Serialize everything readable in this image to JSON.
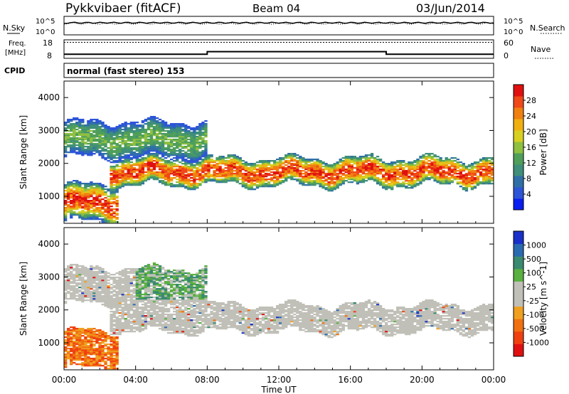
{
  "header": {
    "station": "Pykkvibaer (fitACF)",
    "beam": "Beam 04",
    "date": "03/Jun/2014"
  },
  "sky_panel": {
    "left_label": "N.Sky",
    "right_label": "N.Search",
    "left_ticks": [
      "10^5",
      "10^0"
    ],
    "right_ticks": [
      "10^5",
      "10^0"
    ]
  },
  "freq_panel": {
    "left_label_1": "Freq.",
    "left_label_2": "[MHz]",
    "right_label": "Nave",
    "left_ticks": [
      "18",
      "8"
    ],
    "right_ticks": [
      "60",
      "0"
    ],
    "freq_steps": [
      {
        "from": "00:00",
        "to": "08:00",
        "freq_mhz": 10.2
      },
      {
        "from": "08:00",
        "to": "18:00",
        "freq_mhz": 11.6
      },
      {
        "from": "18:00",
        "to": "24:00",
        "freq_mhz": 10.2
      }
    ],
    "nave_level": 52
  },
  "cpid": {
    "label": "CPID",
    "value": "normal (fast stereo) 153"
  },
  "time_axis": {
    "label": "Time UT",
    "ticks": [
      "00:00",
      "04:00",
      "08:00",
      "12:00",
      "16:00",
      "20:00",
      "00:00"
    ]
  },
  "chart_data": [
    {
      "type": "heatmap",
      "quantity": "Power",
      "ylabel": "Slant Range [km]",
      "ylim": [
        180,
        4500
      ],
      "yticks": [
        "1000",
        "2000",
        "3000",
        "4000"
      ],
      "xlabel": "Time UT",
      "xlim_hours": [
        0,
        24
      ],
      "colorbar": {
        "label": "Power [dB]",
        "ticks": [
          "4",
          "8",
          "12",
          "16",
          "20",
          "24",
          "28"
        ],
        "range": [
          0,
          30
        ],
        "colors": [
          "#0a1ef0",
          "#2d55d8",
          "#2f6fa8",
          "#3f8f7a",
          "#4f9f5a",
          "#8fc040",
          "#d8d020",
          "#f0b010",
          "#f08010",
          "#f04818",
          "#e01010"
        ]
      },
      "features": [
        {
          "name": "main band",
          "from_ut": 2.5,
          "to_ut": 24,
          "range_km": [
            1350,
            2100
          ],
          "peak_power_db": 28
        },
        {
          "name": "upper scatter",
          "from_ut": 0,
          "to_ut": 8,
          "range_km": [
            2200,
            3200
          ],
          "peak_power_db": 14
        },
        {
          "name": "near-range echoes",
          "from_ut": 0,
          "to_ut": 3,
          "range_km": [
            250,
            1300
          ],
          "peak_power_db": 28
        }
      ]
    },
    {
      "type": "heatmap",
      "quantity": "Velocity",
      "ylabel": "Slant Range [km]",
      "ylim": [
        180,
        4500
      ],
      "yticks": [
        "1000",
        "2000",
        "3000",
        "4000"
      ],
      "xlabel": "Time UT",
      "xlim_hours": [
        0,
        24
      ],
      "colorbar": {
        "label": "Velocity [m s^-1]",
        "ticks": [
          "1000",
          "500",
          "100",
          "25",
          "-25",
          "-100",
          "-500",
          "-1000"
        ],
        "colors": [
          "#1a30c8",
          "#2a6ab0",
          "#3a8a70",
          "#5ab040",
          "#c0c0b8",
          "#c0c0b8",
          "#f0a020",
          "#f07010",
          "#f04010",
          "#e01010"
        ]
      },
      "features": [
        {
          "name": "main band",
          "from_ut": 2.5,
          "to_ut": 24,
          "range_km": [
            1350,
            2100
          ],
          "velocity": "near zero (grey)"
        },
        {
          "name": "upper scatter",
          "from_ut": 0,
          "to_ut": 8,
          "range_km": [
            2200,
            3200
          ],
          "velocity": "-100 to 100"
        },
        {
          "name": "near-range echoes",
          "from_ut": 0,
          "to_ut": 3,
          "range_km": [
            250,
            1300
          ],
          "velocity": "-500 to -100"
        }
      ]
    }
  ],
  "colors": {
    "missing": "#ffffff",
    "ground_scatter_grey": "#c0c0b8"
  }
}
